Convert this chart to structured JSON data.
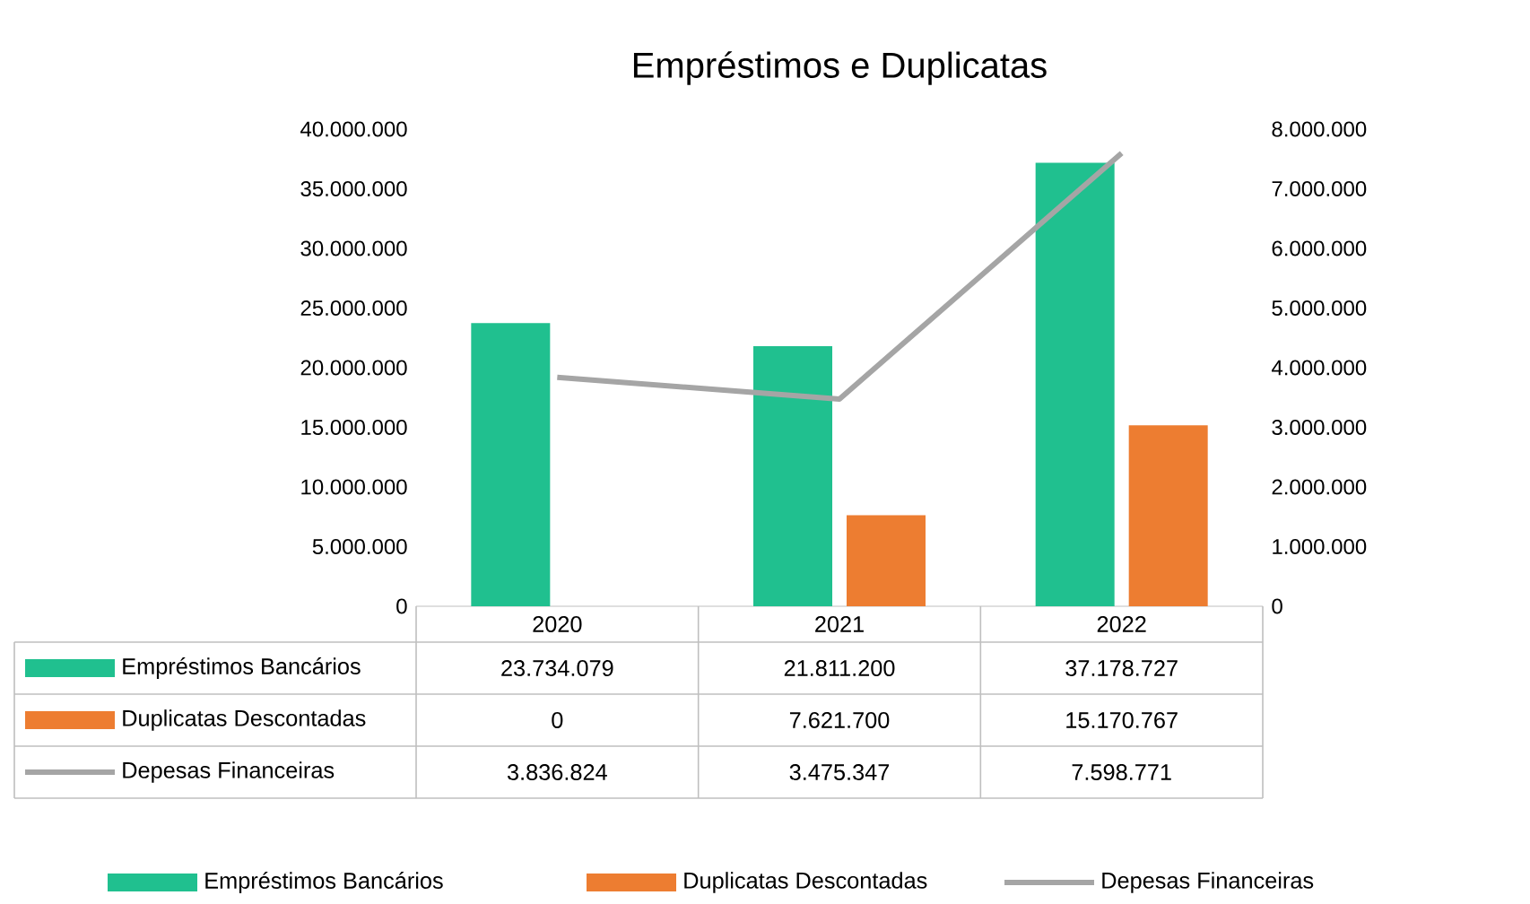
{
  "chart_data": {
    "type": "bar",
    "title": "Empréstimos e Duplicatas",
    "categories": [
      "2020",
      "2021",
      "2022"
    ],
    "series": [
      {
        "name": "Empréstimos Bancários",
        "color": "#20c08f",
        "values": [
          23734079,
          21811200,
          37178727
        ],
        "value_labels": [
          "23.734.079",
          "21.811.200",
          "37.178.727"
        ]
      },
      {
        "name": "Duplicatas Descontadas",
        "color": "#ed7d31",
        "values": [
          0,
          7621700,
          15170767
        ],
        "value_labels": [
          "0",
          "7.621.700",
          "15.170.767"
        ]
      },
      {
        "name": "Depesas Financeiras",
        "color": "#a5a5a5",
        "type": "line",
        "axis": "y2",
        "marker": "none",
        "values": [
          3836824,
          3475347,
          7598771
        ],
        "value_labels": [
          "3.836.824",
          "3.475.347",
          "7.598.771"
        ]
      }
    ],
    "ylim": [
      0,
      40000000
    ],
    "yticks": [
      {
        "value": 0,
        "label": "0"
      },
      {
        "value": 5000000,
        "label": "5.000.000"
      },
      {
        "value": 10000000,
        "label": "10.000.000"
      },
      {
        "value": 15000000,
        "label": "15.000.000"
      },
      {
        "value": 20000000,
        "label": "20.000.000"
      },
      {
        "value": 25000000,
        "label": "25.000.000"
      },
      {
        "value": 30000000,
        "label": "30.000.000"
      },
      {
        "value": 35000000,
        "label": "35.000.000"
      },
      {
        "value": 40000000,
        "label": "40.000.000"
      }
    ],
    "y2lim": [
      0,
      8000000
    ],
    "y2ticks": [
      {
        "value": 0,
        "label": "0"
      },
      {
        "value": 1000000,
        "label": "1.000.000"
      },
      {
        "value": 2000000,
        "label": "2.000.000"
      },
      {
        "value": 3000000,
        "label": "3.000.000"
      },
      {
        "value": 4000000,
        "label": "4.000.000"
      },
      {
        "value": 5000000,
        "label": "5.000.000"
      },
      {
        "value": 6000000,
        "label": "6.000.000"
      },
      {
        "value": 7000000,
        "label": "7.000.000"
      },
      {
        "value": 8000000,
        "label": "8.000.000"
      }
    ],
    "legend": "bottom"
  }
}
